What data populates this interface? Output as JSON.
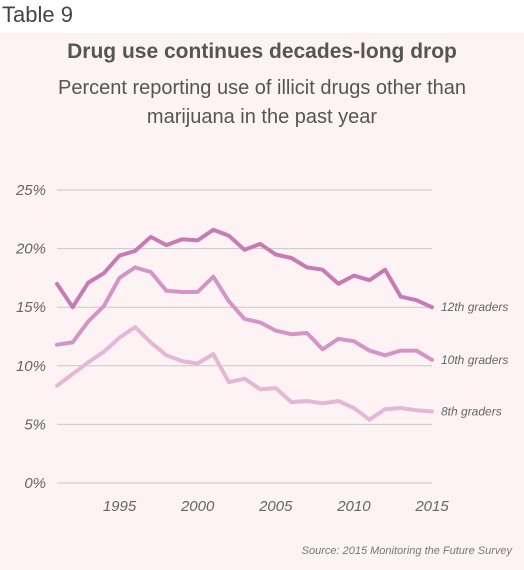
{
  "header": {
    "table_label": "Table 9"
  },
  "chart_data": {
    "type": "line",
    "title": "Drug use continues decades-long drop",
    "subtitle": "Percent reporting use of illicit drugs other than marijuana in the past year",
    "source": "Source: 2015 Monitoring the Future Survey",
    "xlabel": "",
    "ylabel": "",
    "xlim": [
      1991,
      2015
    ],
    "ylim": [
      0,
      25
    ],
    "x_ticks": [
      1995,
      2000,
      2005,
      2010,
      2015
    ],
    "y_ticks": [
      0,
      5,
      10,
      15,
      20,
      25
    ],
    "y_tick_labels": [
      "0%",
      "5%",
      "10%",
      "15%",
      "20%",
      "25%"
    ],
    "grid": "horizontal",
    "legend": "right, labels at line ends",
    "x": [
      1991,
      1992,
      1993,
      1994,
      1995,
      1996,
      1997,
      1998,
      1999,
      2000,
      2001,
      2002,
      2003,
      2004,
      2005,
      2006,
      2007,
      2008,
      2009,
      2010,
      2011,
      2012,
      2013,
      2014,
      2015
    ],
    "series": [
      {
        "name": "12th graders",
        "color": "#c77bb5",
        "values": [
          17.0,
          15.0,
          17.1,
          17.9,
          19.4,
          19.8,
          21.0,
          20.3,
          20.8,
          20.7,
          21.6,
          21.1,
          19.9,
          20.4,
          19.5,
          19.2,
          18.4,
          18.2,
          17.0,
          17.7,
          17.3,
          18.2,
          15.9,
          15.6,
          15.0
        ]
      },
      {
        "name": "10th graders",
        "color": "#d495c6",
        "values": [
          11.8,
          12.0,
          13.8,
          15.1,
          17.5,
          18.4,
          18.0,
          16.4,
          16.3,
          16.3,
          17.6,
          15.5,
          14.0,
          13.7,
          13.0,
          12.7,
          12.8,
          11.4,
          12.3,
          12.1,
          11.3,
          10.9,
          11.3,
          11.3,
          10.5
        ]
      },
      {
        "name": "8th graders",
        "color": "#e4b7d6",
        "values": [
          8.3,
          9.3,
          10.3,
          11.2,
          12.4,
          13.3,
          12.0,
          10.9,
          10.4,
          10.2,
          11.0,
          8.6,
          8.9,
          8.0,
          8.1,
          6.9,
          7.0,
          6.8,
          7.0,
          6.4,
          5.4,
          6.3,
          6.4,
          6.2,
          6.1
        ]
      }
    ]
  }
}
